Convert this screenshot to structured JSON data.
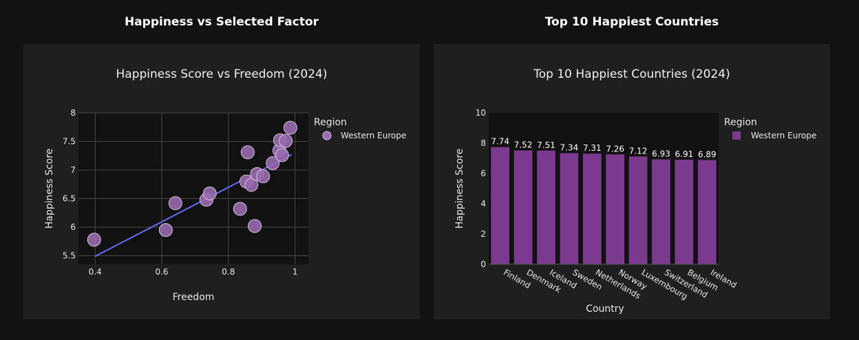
{
  "headings": {
    "left": "Happiness vs Selected Factor",
    "right": "Top 10 Happiest Countries"
  },
  "colors": {
    "page_bg": "#111111",
    "panel_bg": "#1f1f1f",
    "plot_bg": "#111111",
    "grid": "#4a4a4a",
    "marker_fill": "#9b6bb0",
    "marker_stroke": "#d8c3e3",
    "trend_line": "#636efa",
    "bar_fill": "#7c3a8e"
  },
  "chart_data": [
    {
      "type": "scatter",
      "title": "Happiness Score vs Freedom (2024)",
      "xlabel": "Freedom",
      "ylabel": "Happiness Score",
      "xlim": [
        0.35,
        1.04
      ],
      "ylim": [
        5.35,
        8.0
      ],
      "xticks": [
        "0.4",
        "0.6",
        "0.8",
        "1"
      ],
      "xtick_values": [
        0.4,
        0.6,
        0.8,
        1.0
      ],
      "yticks": [
        "5.5",
        "6",
        "6.5",
        "7",
        "7.5",
        "8"
      ],
      "ytick_values": [
        5.5,
        6.0,
        6.5,
        7.0,
        7.5,
        8.0
      ],
      "grid": true,
      "legend_title": "Region",
      "legend_placement": "top-right outside plot",
      "series": [
        {
          "name": "Western Europe",
          "points": [
            {
              "x": 0.397,
              "y": 5.78
            },
            {
              "x": 0.612,
              "y": 5.95
            },
            {
              "x": 0.641,
              "y": 6.42
            },
            {
              "x": 0.734,
              "y": 6.48
            },
            {
              "x": 0.744,
              "y": 6.59
            },
            {
              "x": 0.835,
              "y": 6.32
            },
            {
              "x": 0.854,
              "y": 6.8
            },
            {
              "x": 0.858,
              "y": 7.31
            },
            {
              "x": 0.869,
              "y": 6.74
            },
            {
              "x": 0.879,
              "y": 6.02
            },
            {
              "x": 0.886,
              "y": 6.93
            },
            {
              "x": 0.904,
              "y": 6.89
            },
            {
              "x": 0.933,
              "y": 7.12
            },
            {
              "x": 0.953,
              "y": 7.34
            },
            {
              "x": 0.955,
              "y": 7.52
            },
            {
              "x": 0.961,
              "y": 7.26
            },
            {
              "x": 0.972,
              "y": 7.51
            },
            {
              "x": 0.986,
              "y": 7.74
            }
          ]
        }
      ],
      "trendline": {
        "x": [
          0.4,
          0.99
        ],
        "y": [
          5.49,
          7.27
        ]
      }
    },
    {
      "type": "bar",
      "title": "Top 10 Happiest Countries (2024)",
      "xlabel": "Country",
      "ylabel": "Happiness Score",
      "ylim": [
        0,
        10
      ],
      "yticks": [
        "0",
        "2",
        "4",
        "6",
        "8",
        "10"
      ],
      "ytick_values": [
        0,
        2,
        4,
        6,
        8,
        10
      ],
      "grid": false,
      "legend_title": "Region",
      "legend_placement": "top-right outside plot",
      "categories": [
        "Finland",
        "Denmark",
        "Iceland",
        "Sweden",
        "Netherlands",
        "Norway",
        "Luxembourg",
        "Switzerland",
        "Belgium",
        "Ireland"
      ],
      "series": [
        {
          "name": "Western Europe",
          "values": [
            7.74,
            7.52,
            7.51,
            7.34,
            7.31,
            7.26,
            7.12,
            6.93,
            6.91,
            6.89
          ],
          "labels": [
            "7.74",
            "7.52",
            "7.51",
            "7.34",
            "7.31",
            "7.26",
            "7.12",
            "6.93",
            "6.91",
            "6.89"
          ]
        }
      ]
    }
  ]
}
